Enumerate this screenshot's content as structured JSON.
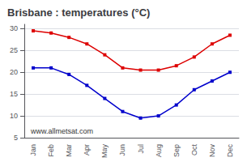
{
  "chart_data": {
    "type": "line",
    "title": "Brisbane : temperatures (°C)",
    "categories": [
      "Jan",
      "Feb",
      "Mar",
      "Apr",
      "May",
      "Jun",
      "Jul",
      "Aug",
      "Sep",
      "Oct",
      "Nov",
      "Dec"
    ],
    "series": [
      {
        "color": "#dd0000",
        "marker": "square",
        "values": [
          29.5,
          29.0,
          28.0,
          26.5,
          24.0,
          21.0,
          20.5,
          20.5,
          21.5,
          23.5,
          26.5,
          28.5
        ]
      },
      {
        "color": "#0000cc",
        "marker": "square",
        "values": [
          21.0,
          21.0,
          19.5,
          17.0,
          14.0,
          11.0,
          9.5,
          10.0,
          12.5,
          16.0,
          18.0,
          20.0
        ]
      }
    ],
    "ylim": [
      5,
      31
    ],
    "yticks": [
      5,
      10,
      15,
      20,
      25,
      30
    ],
    "grid": true,
    "annotations": [
      "www.allmetsat.com"
    ]
  }
}
